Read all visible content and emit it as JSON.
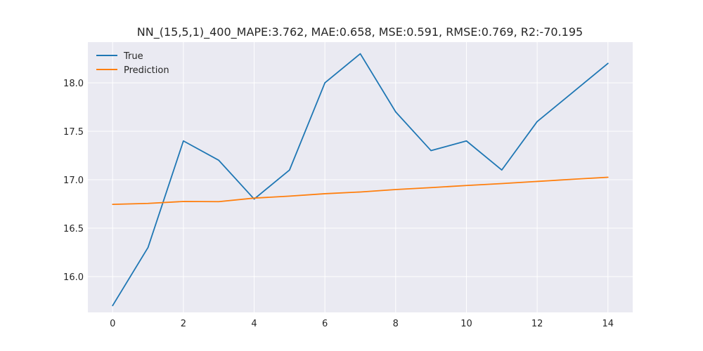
{
  "chart_data": {
    "type": "line",
    "title": "NN_(15,5,1)_400_MAPE:3.762, MAE:0.658, MSE:0.591, RMSE:0.769, R2:-70.195",
    "xlabel": "",
    "ylabel": "",
    "x": [
      0,
      1,
      2,
      3,
      4,
      5,
      6,
      7,
      8,
      9,
      10,
      11,
      12,
      13,
      14
    ],
    "x_ticks": [
      0,
      2,
      4,
      6,
      8,
      10,
      12,
      14
    ],
    "y_ticks": [
      16.0,
      16.5,
      17.0,
      17.5,
      18.0
    ],
    "xlim": [
      -0.7,
      14.7
    ],
    "ylim": [
      15.63,
      18.42
    ],
    "grid": true,
    "legend_position": "top-left",
    "series": [
      {
        "name": "True",
        "color": "#1f77b4",
        "values": [
          15.7,
          16.3,
          17.4,
          17.2,
          16.8,
          17.1,
          18.0,
          18.3,
          17.7,
          17.3,
          17.4,
          17.1,
          17.6,
          17.9,
          18.2
        ]
      },
      {
        "name": "Prediction",
        "color": "#ff7f0e",
        "values": [
          16.745,
          16.755,
          16.775,
          16.773,
          16.81,
          16.83,
          16.855,
          16.873,
          16.898,
          16.918,
          16.94,
          16.96,
          16.982,
          17.004,
          17.025
        ]
      }
    ],
    "colors": {
      "plot_background": "#eaeaf2",
      "grid": "#ffffff",
      "text": "#262626"
    }
  }
}
